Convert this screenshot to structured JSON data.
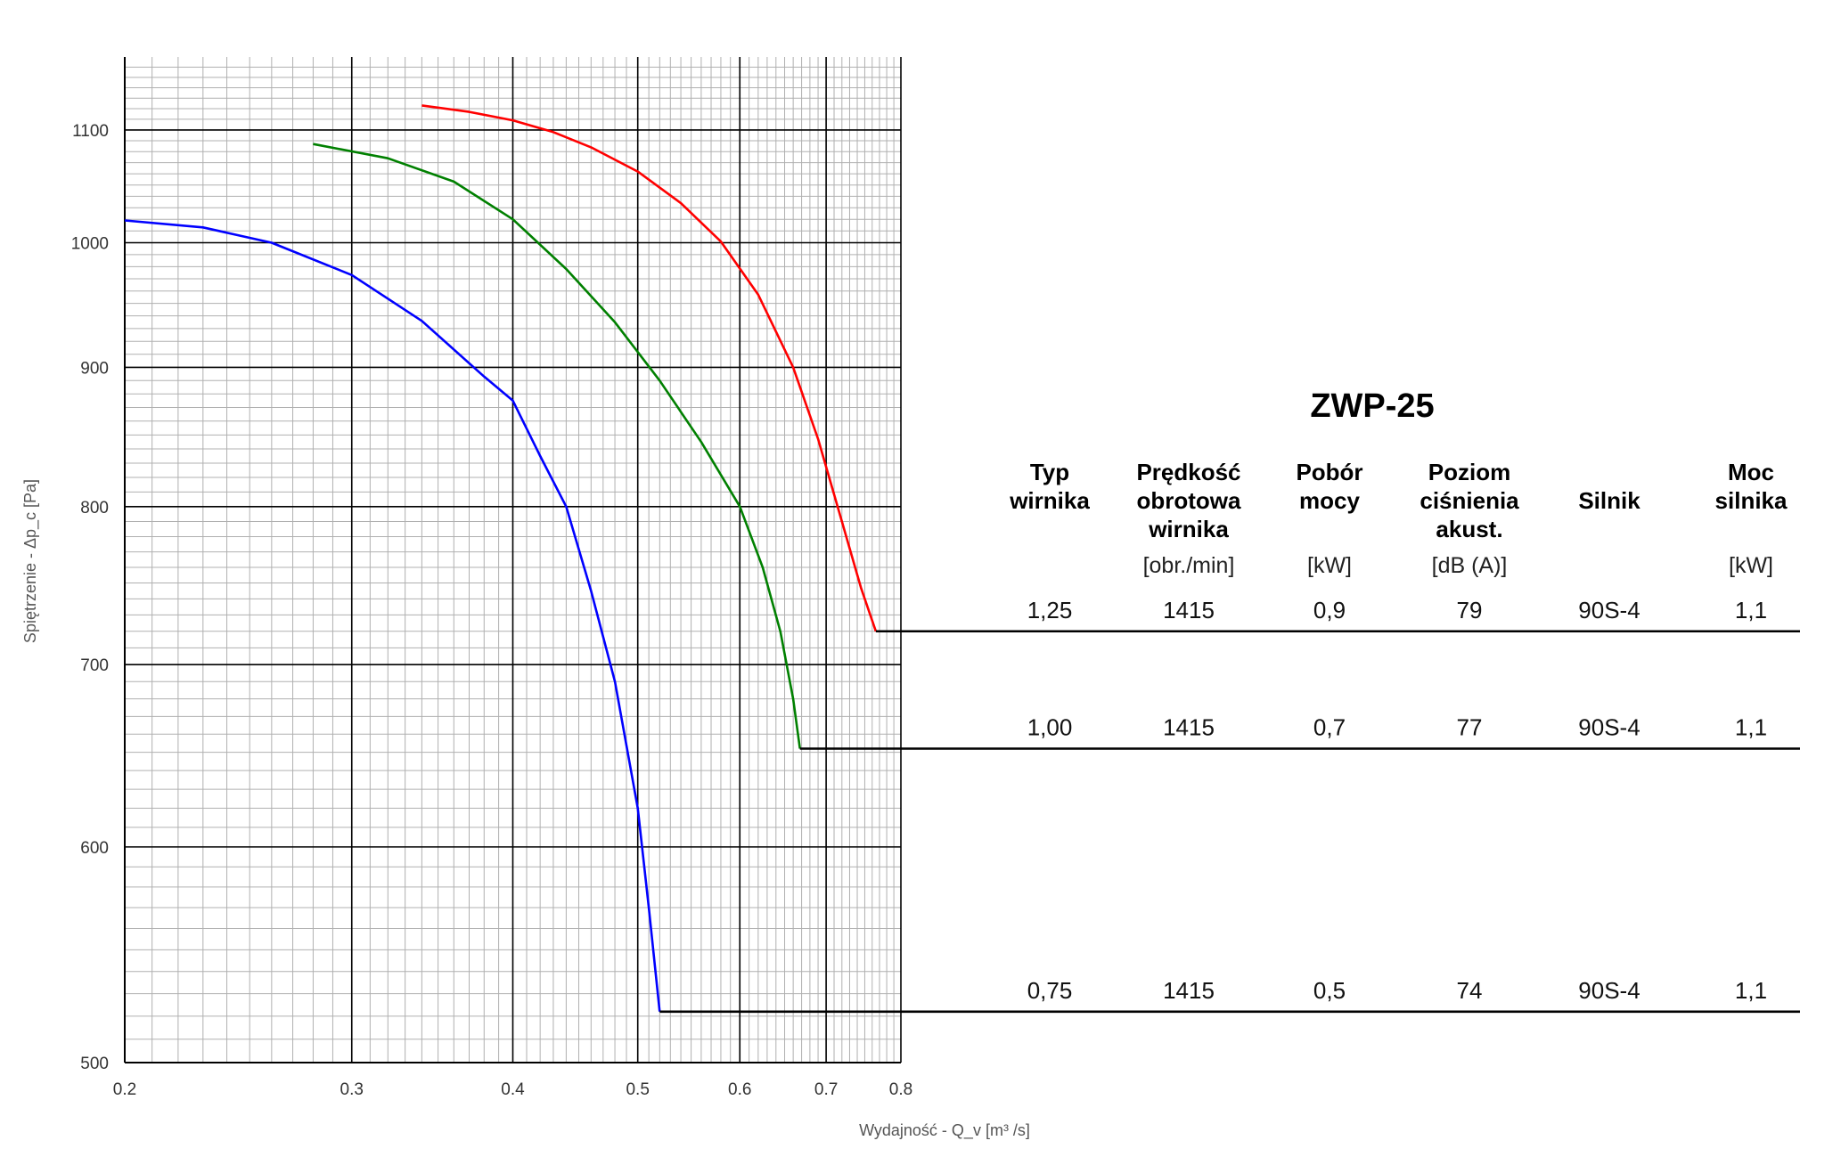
{
  "chart_data": {
    "type": "line",
    "title": "ZWP-25",
    "xlabel": "Wydajność - Q_v [m³ /s]",
    "ylabel": "Spiętrzenie - Δp_c [Pa]",
    "x_scale": "log",
    "y_scale": "log",
    "xlim": [
      0.2,
      0.8
    ],
    "ylim": [
      500,
      1170
    ],
    "x_ticks": [
      "0.2",
      "0.3",
      "0.4",
      "0.5",
      "0.6",
      "0.7",
      "0.8"
    ],
    "y_ticks": [
      "500",
      "600",
      "700",
      "800",
      "900",
      "1000",
      "1100"
    ],
    "grid": true,
    "series": [
      {
        "color": "#ff0000",
        "x": [
          0.34,
          0.37,
          0.4,
          0.43,
          0.46,
          0.5,
          0.54,
          0.58,
          0.62,
          0.66,
          0.69,
          0.72,
          0.745,
          0.765
        ],
        "y": [
          1123,
          1117,
          1109,
          1098,
          1084,
          1062,
          1034,
          1001,
          957,
          900,
          847,
          790,
          747,
          720
        ]
      },
      {
        "color": "#008000",
        "x": [
          0.28,
          0.32,
          0.36,
          0.4,
          0.44,
          0.48,
          0.52,
          0.56,
          0.6,
          0.625,
          0.645,
          0.66,
          0.668
        ],
        "y": [
          1087,
          1074,
          1053,
          1020,
          978,
          935,
          890,
          845,
          800,
          760,
          720,
          680,
          652
        ]
      },
      {
        "color": "#0000ff",
        "x": [
          0.2,
          0.23,
          0.26,
          0.3,
          0.34,
          0.38,
          0.4,
          0.42,
          0.44,
          0.46,
          0.48,
          0.5,
          0.51,
          0.52
        ],
        "y": [
          1019,
          1013,
          1000,
          973,
          936,
          893,
          875,
          835,
          800,
          745,
          690,
          620,
          570,
          522
        ]
      }
    ],
    "flat_line_ends_y": [
      720,
      652,
      522
    ],
    "table": {
      "headers": [
        [
          "Typ",
          "wirnika"
        ],
        [
          "Prędkość",
          "obrotowa",
          "wirnika"
        ],
        [
          "Pobór",
          "mocy"
        ],
        [
          "Poziom",
          "ciśnienia",
          "akust."
        ],
        [
          "Silnik"
        ],
        [
          "Moc",
          "silnika"
        ]
      ],
      "units": [
        "",
        "[obr./min]",
        "[kW]",
        "[dB (A)]",
        "",
        "[kW]"
      ],
      "rows": [
        [
          "1,25",
          "1415",
          "0,9",
          "79",
          "90S-4",
          "1,1"
        ],
        [
          "1,00",
          "1415",
          "0,7",
          "77",
          "90S-4",
          "1,1"
        ],
        [
          "0,75",
          "1415",
          "0,5",
          "74",
          "90S-4",
          "1,1"
        ]
      ]
    }
  }
}
